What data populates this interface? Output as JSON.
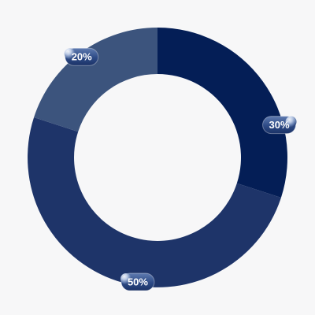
{
  "page": {
    "background": "#f7f7f8"
  },
  "chart_data": {
    "type": "pie",
    "variant": "donut",
    "title": "",
    "categories": [
      "",
      "",
      ""
    ],
    "values": [
      30,
      50,
      20
    ],
    "labels": [
      "30%",
      "50%",
      "20%"
    ],
    "colors": [
      "#041e56",
      "#1e3469",
      "#3c547d"
    ],
    "legend": "none",
    "start_angle_deg": 0,
    "direction": "clockwise"
  }
}
